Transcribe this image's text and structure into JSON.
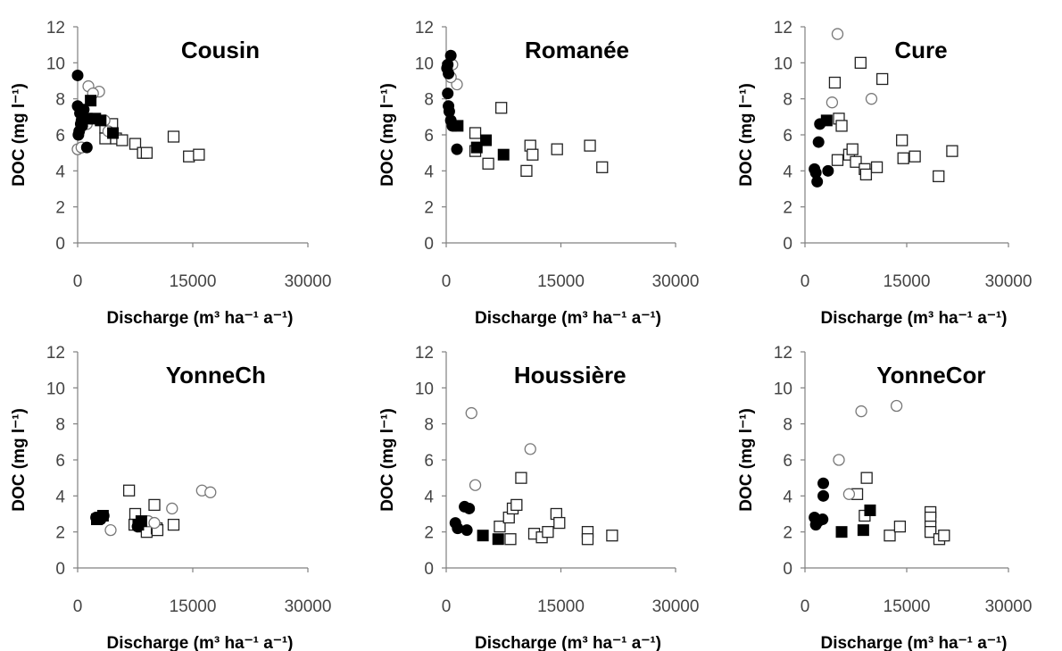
{
  "chart_data": [
    {
      "type": "scatter",
      "title": "Cousin",
      "xlabel": "Discharge (m³ ha⁻¹ a⁻¹)",
      "ylabel": "DOC (mg l⁻¹)",
      "xlim": [
        0,
        30000
      ],
      "ylim": [
        0,
        12
      ],
      "xticks": [
        "0",
        "15000",
        "30000"
      ],
      "yticks": [
        "0",
        "2",
        "4",
        "6",
        "8",
        "10",
        "12"
      ],
      "grid": false,
      "series": [
        {
          "marker": "filled-circle",
          "points": [
            [
              0,
              9.3
            ],
            [
              0,
              7.6
            ],
            [
              300,
              7.2
            ],
            [
              500,
              6.8
            ],
            [
              600,
              6.5
            ],
            [
              200,
              6.2
            ],
            [
              800,
              7.4
            ],
            [
              1200,
              6.9
            ],
            [
              1200,
              5.3
            ],
            [
              700,
              6.8
            ],
            [
              400,
              6.6
            ],
            [
              100,
              6.0
            ]
          ]
        },
        {
          "marker": "open-circle",
          "points": [
            [
              1400,
              8.7
            ],
            [
              2800,
              8.4
            ],
            [
              2000,
              8.3
            ],
            [
              0,
              5.2
            ],
            [
              500,
              5.3
            ],
            [
              1200,
              6.6
            ],
            [
              3500,
              6.8
            ],
            [
              4000,
              6.2
            ]
          ]
        },
        {
          "marker": "filled-square",
          "points": [
            [
              1700,
              7.9
            ],
            [
              1200,
              6.9
            ],
            [
              2300,
              6.9
            ],
            [
              3000,
              6.8
            ],
            [
              4600,
              6.1
            ]
          ]
        },
        {
          "marker": "open-square",
          "points": [
            [
              3600,
              6.4
            ],
            [
              4500,
              6.6
            ],
            [
              3600,
              5.8
            ],
            [
              5000,
              5.8
            ],
            [
              5800,
              5.7
            ],
            [
              7500,
              5.5
            ],
            [
              8500,
              5.0
            ],
            [
              9000,
              5.0
            ],
            [
              12500,
              5.9
            ],
            [
              14500,
              4.8
            ],
            [
              15800,
              4.9
            ]
          ]
        }
      ]
    },
    {
      "type": "scatter",
      "title": "Romanée",
      "xlabel": "Discharge (m³ ha⁻¹ a⁻¹)",
      "ylabel": "DOC (mg l⁻¹)",
      "xlim": [
        0,
        30000
      ],
      "ylim": [
        0,
        12
      ],
      "xticks": [
        "0",
        "15000",
        "30000"
      ],
      "yticks": [
        "0",
        "2",
        "4",
        "6",
        "8",
        "10",
        "12"
      ],
      "grid": false,
      "series": [
        {
          "marker": "filled-circle",
          "points": [
            [
              600,
              10.4
            ],
            [
              200,
              9.9
            ],
            [
              100,
              9.7
            ],
            [
              300,
              9.4
            ],
            [
              200,
              8.3
            ],
            [
              300,
              7.6
            ],
            [
              400,
              7.3
            ],
            [
              600,
              6.8
            ],
            [
              800,
              6.5
            ],
            [
              1200,
              6.5
            ],
            [
              1400,
              5.2
            ]
          ]
        },
        {
          "marker": "open-circle",
          "points": [
            [
              800,
              9.9
            ],
            [
              1400,
              8.8
            ],
            [
              600,
              9.2
            ]
          ]
        },
        {
          "marker": "filled-square",
          "points": [
            [
              1500,
              6.5
            ],
            [
              4000,
              5.3
            ],
            [
              5200,
              5.7
            ],
            [
              7500,
              4.9
            ]
          ]
        },
        {
          "marker": "open-square",
          "points": [
            [
              3800,
              6.1
            ],
            [
              3800,
              5.1
            ],
            [
              5500,
              4.4
            ],
            [
              7200,
              7.5
            ],
            [
              10500,
              4.0
            ],
            [
              11000,
              5.4
            ],
            [
              11300,
              4.9
            ],
            [
              14500,
              5.2
            ],
            [
              18800,
              5.4
            ],
            [
              20400,
              4.2
            ]
          ]
        }
      ]
    },
    {
      "type": "scatter",
      "title": "Cure",
      "xlabel": "Discharge (m³ ha⁻¹ a⁻¹)",
      "ylabel": "DOC (mg l⁻¹)",
      "xlim": [
        0,
        30000
      ],
      "ylim": [
        0,
        12
      ],
      "xticks": [
        "0",
        "15000",
        "30000"
      ],
      "yticks": [
        "0",
        "2",
        "4",
        "6",
        "8",
        "10",
        "12"
      ],
      "grid": false,
      "series": [
        {
          "marker": "filled-circle",
          "points": [
            [
              1400,
              4.1
            ],
            [
              1600,
              3.9
            ],
            [
              1800,
              3.4
            ],
            [
              2000,
              5.6
            ],
            [
              2200,
              6.6
            ],
            [
              3400,
              4.0
            ]
          ]
        },
        {
          "marker": "open-circle",
          "points": [
            [
              4800,
              11.6
            ],
            [
              4000,
              7.8
            ],
            [
              9800,
              8.0
            ]
          ]
        },
        {
          "marker": "filled-square",
          "points": [
            [
              3200,
              6.8
            ]
          ]
        },
        {
          "marker": "open-square",
          "points": [
            [
              4400,
              8.9
            ],
            [
              5000,
              6.9
            ],
            [
              5400,
              6.5
            ],
            [
              4800,
              4.6
            ],
            [
              6500,
              4.9
            ],
            [
              7000,
              5.2
            ],
            [
              7500,
              4.5
            ],
            [
              8200,
              10.0
            ],
            [
              8800,
              4.1
            ],
            [
              9000,
              3.8
            ],
            [
              10600,
              4.2
            ],
            [
              11400,
              9.1
            ],
            [
              14300,
              5.7
            ],
            [
              14500,
              4.7
            ],
            [
              16200,
              4.8
            ],
            [
              19700,
              3.7
            ],
            [
              21700,
              5.1
            ]
          ]
        }
      ]
    },
    {
      "type": "scatter",
      "title": "YonneCh",
      "xlabel": "Discharge (m³ ha⁻¹ a⁻¹)",
      "ylabel": "DOC (mg l⁻¹)",
      "xlim": [
        0,
        30000
      ],
      "ylim": [
        0,
        12
      ],
      "xticks": [
        "0",
        "15000",
        "30000"
      ],
      "yticks": [
        "0",
        "2",
        "4",
        "6",
        "8",
        "10",
        "12"
      ],
      "grid": false,
      "series": [
        {
          "marker": "filled-circle",
          "points": [
            [
              2400,
              2.8
            ],
            [
              3000,
              2.7
            ],
            [
              3400,
              2.9
            ],
            [
              7800,
              2.3
            ]
          ]
        },
        {
          "marker": "open-circle",
          "points": [
            [
              4300,
              2.1
            ],
            [
              9200,
              2.6
            ],
            [
              10000,
              2.5
            ],
            [
              12300,
              3.3
            ],
            [
              16200,
              4.3
            ],
            [
              17300,
              4.2
            ]
          ]
        },
        {
          "marker": "filled-square",
          "points": [
            [
              2500,
              2.7
            ],
            [
              3300,
              2.9
            ],
            [
              7900,
              2.4
            ],
            [
              8300,
              2.6
            ]
          ]
        },
        {
          "marker": "open-square",
          "points": [
            [
              6700,
              4.3
            ],
            [
              7500,
              3.0
            ],
            [
              7400,
              2.4
            ],
            [
              8400,
              2.3
            ],
            [
              9000,
              2.0
            ],
            [
              10000,
              3.5
            ],
            [
              10300,
              2.2
            ],
            [
              10400,
              2.1
            ],
            [
              12500,
              2.4
            ]
          ]
        }
      ]
    },
    {
      "type": "scatter",
      "title": "Houssière",
      "xlabel": "Discharge (m³ ha⁻¹ a⁻¹)",
      "ylabel": "DOC (mg l⁻¹)",
      "xlim": [
        0,
        30000
      ],
      "ylim": [
        0,
        12
      ],
      "xticks": [
        "0",
        "15000",
        "30000"
      ],
      "yticks": [
        "0",
        "2",
        "4",
        "6",
        "8",
        "10",
        "12"
      ],
      "grid": false,
      "series": [
        {
          "marker": "filled-circle",
          "points": [
            [
              1200,
              2.5
            ],
            [
              1500,
              2.2
            ],
            [
              2400,
              3.4
            ],
            [
              3000,
              3.3
            ],
            [
              2700,
              2.1
            ]
          ]
        },
        {
          "marker": "open-circle",
          "points": [
            [
              3300,
              8.6
            ],
            [
              3800,
              4.6
            ],
            [
              11000,
              6.6
            ]
          ]
        },
        {
          "marker": "filled-square",
          "points": [
            [
              4800,
              1.8
            ],
            [
              6800,
              1.6
            ]
          ]
        },
        {
          "marker": "open-square",
          "points": [
            [
              7000,
              2.3
            ],
            [
              8200,
              2.8
            ],
            [
              8400,
              1.6
            ],
            [
              8700,
              3.3
            ],
            [
              9200,
              3.5
            ],
            [
              9800,
              5.0
            ],
            [
              11500,
              1.9
            ],
            [
              12500,
              1.7
            ],
            [
              13300,
              2.0
            ],
            [
              14400,
              3.0
            ],
            [
              14800,
              2.5
            ],
            [
              18500,
              2.0
            ],
            [
              18500,
              1.6
            ],
            [
              21700,
              1.8
            ]
          ]
        }
      ]
    },
    {
      "type": "scatter",
      "title": "YonneCor",
      "xlabel": "Discharge (m³ ha⁻¹ a⁻¹)",
      "ylabel": "DOC (mg l⁻¹)",
      "xlim": [
        0,
        30000
      ],
      "ylim": [
        0,
        12
      ],
      "xticks": [
        "0",
        "15000",
        "30000"
      ],
      "yticks": [
        "0",
        "2",
        "4",
        "6",
        "8",
        "10",
        "12"
      ],
      "grid": false,
      "series": [
        {
          "marker": "filled-circle",
          "points": [
            [
              1400,
              2.8
            ],
            [
              1600,
              2.4
            ],
            [
              2000,
              2.6
            ],
            [
              2600,
              2.7
            ],
            [
              2700,
              4.7
            ],
            [
              2700,
              4.0
            ]
          ]
        },
        {
          "marker": "open-circle",
          "points": [
            [
              5000,
              6.0
            ],
            [
              6500,
              4.1
            ],
            [
              8300,
              8.7
            ],
            [
              13500,
              9.0
            ]
          ]
        },
        {
          "marker": "filled-square",
          "points": [
            [
              5400,
              2.0
            ],
            [
              8600,
              2.1
            ],
            [
              9600,
              3.2
            ]
          ]
        },
        {
          "marker": "open-square",
          "points": [
            [
              7700,
              4.1
            ],
            [
              8800,
              2.9
            ],
            [
              9100,
              5.0
            ],
            [
              12500,
              1.8
            ],
            [
              14000,
              2.3
            ],
            [
              18500,
              3.1
            ],
            [
              18500,
              2.8
            ],
            [
              18500,
              2.3
            ],
            [
              18500,
              2.0
            ],
            [
              19800,
              1.6
            ],
            [
              20500,
              1.8
            ]
          ]
        }
      ]
    }
  ]
}
